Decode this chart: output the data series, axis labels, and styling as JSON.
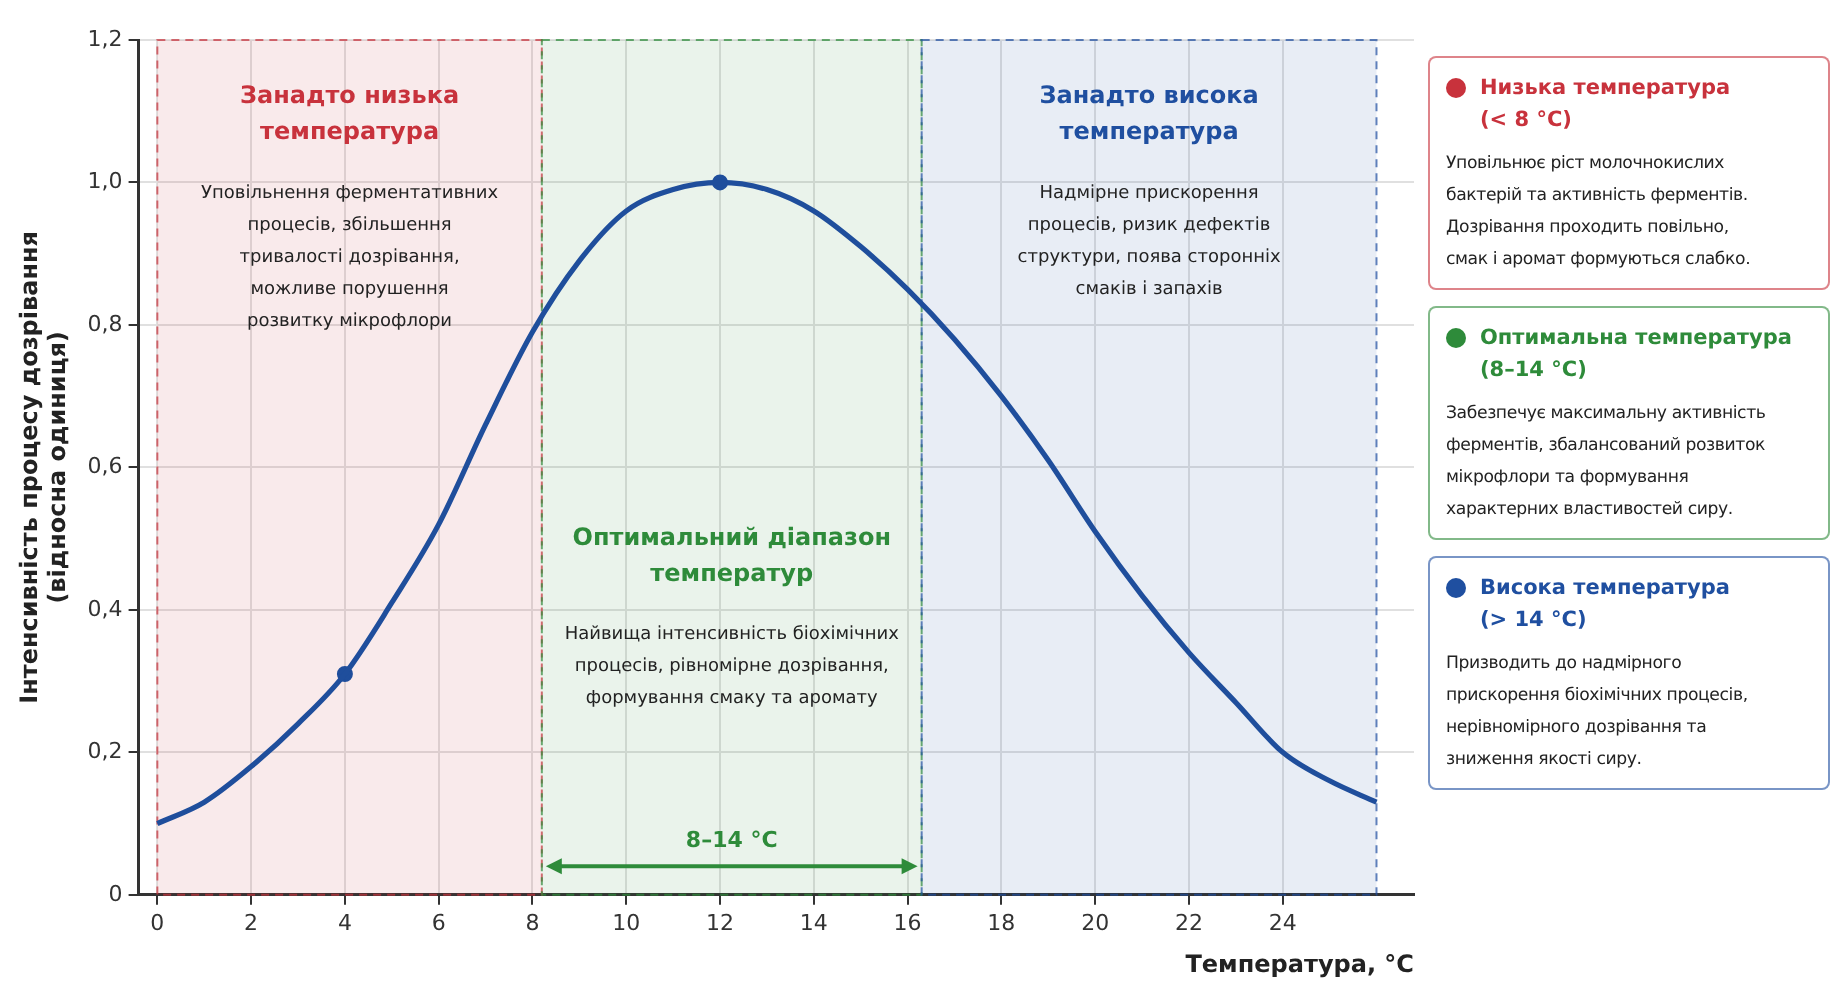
{
  "chart_data": {
    "type": "line",
    "xlabel": "Температура, °C",
    "ylabel": "Інтенсивність процесу дозрівання\n(відносна одиниця)",
    "xlim": [
      -0.4,
      26.8
    ],
    "xticks": [
      0,
      2,
      4,
      6,
      8,
      10,
      12,
      14,
      16,
      18,
      20,
      22,
      24
    ],
    "ylim": [
      0,
      1.2
    ],
    "yticks": [
      0,
      {
        "value": 0.2,
        "label": "0,2"
      },
      {
        "value": 0.4,
        "label": "0,4"
      },
      {
        "value": 0.6,
        "label": "0,6"
      },
      {
        "value": 0.8,
        "label": "0,8"
      },
      {
        "value": 1.0,
        "label": "1,0"
      },
      {
        "value": 1.2,
        "label": "1,2"
      }
    ],
    "grid": true,
    "legend": false,
    "series": [
      {
        "color": "#1f4e9c",
        "marker": "none",
        "x": [
          0,
          1,
          2,
          3,
          4,
          5,
          6,
          7,
          8,
          9,
          10,
          11,
          12,
          13,
          14,
          15,
          16,
          17,
          18,
          19,
          20,
          21,
          22,
          23,
          24,
          25,
          26
        ],
        "values": [
          0.1,
          0.13,
          0.18,
          0.24,
          0.31,
          0.41,
          0.52,
          0.66,
          0.79,
          0.89,
          0.96,
          0.99,
          1.0,
          0.99,
          0.96,
          0.91,
          0.85,
          0.78,
          0.7,
          0.61,
          0.51,
          0.42,
          0.34,
          0.27,
          0.2,
          0.16,
          0.13
        ]
      },
      {
        "type": "scatter",
        "color": "#1f4e9c",
        "marker": "circle",
        "x": [
          4,
          12
        ],
        "values": [
          0.31,
          1.0
        ]
      }
    ],
    "bands": [
      {
        "axis": "x",
        "from": 0,
        "to": 8.2,
        "label": "Занадто низька\nтемпература",
        "color": "#c8323c"
      },
      {
        "axis": "x",
        "from": 8.2,
        "to": 16.3,
        "label": "Оптимальний діапазон\nтемператур",
        "color": "#2e8b3a"
      },
      {
        "axis": "x",
        "from": 16.3,
        "to": 26,
        "label": "Занадто висока\nтемпература",
        "color": "#1f4fa0"
      }
    ],
    "annotations": [
      "Уповільнення ферментативних\nпроцесів, збільшення\nтривалості дозрівання,\nможливе порушення\nрозвитку мікрофлори",
      "Найвища інтенсивність біохімічних\nпроцесів, рівномірне дозрівання,\nформування смаку та аромату",
      "Надмірне прискорення\nпроцесів, ризик дефектів\nструктури, поява сторонніх\nсмаків і запахів",
      "8–14 °C",
      "Низька температура\n(< 8 °C)",
      "Уповільнює ріст молочнокислих\nбактерій та активність ферментів.\nДозрівання проходить повільно,\nсмак і аромат формуються слабко.",
      "Оптимальна температура\n(8–14 °C)",
      "Забезпечує максимальну активність\nферментів, збалансований розвиток\nмікрофлори та формування\nхарактерних властивостей сиру.",
      "Висока температура\n(> 14 °C)",
      "Призводить до надмірного\nприскорення біохімічних процесів,\nнерівномірного дозрівання та\nзниження якості сиру."
    ]
  }
}
